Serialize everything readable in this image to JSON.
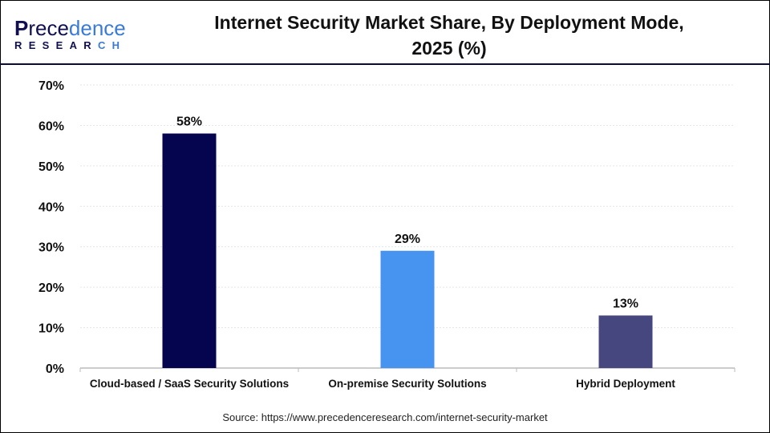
{
  "header": {
    "logo_text": "Precedence RESEARCH",
    "title_line1": "Internet Security Market Share, By Deployment Mode,",
    "title_line2": "2025 (%)"
  },
  "chart_data": {
    "type": "bar",
    "title": "Internet Security Market Share, By Deployment Mode, 2025 (%)",
    "categories": [
      "Cloud-based / SaaS Security Solutions",
      "On-premise Security Solutions",
      "Hybrid Deployment"
    ],
    "values": [
      58,
      29,
      13
    ],
    "data_labels": [
      "58%",
      "29%",
      "13%"
    ],
    "colors": [
      "#05054f",
      "#4693f0",
      "#47477f"
    ],
    "ylim": [
      0,
      70
    ],
    "yticks": [
      "0%",
      "10%",
      "20%",
      "30%",
      "40%",
      "50%",
      "60%",
      "70%"
    ],
    "grid": true,
    "xlabel": "",
    "ylabel": ""
  },
  "footer": {
    "source": "Source: https://www.precedenceresearch.com/internet-security-market"
  }
}
